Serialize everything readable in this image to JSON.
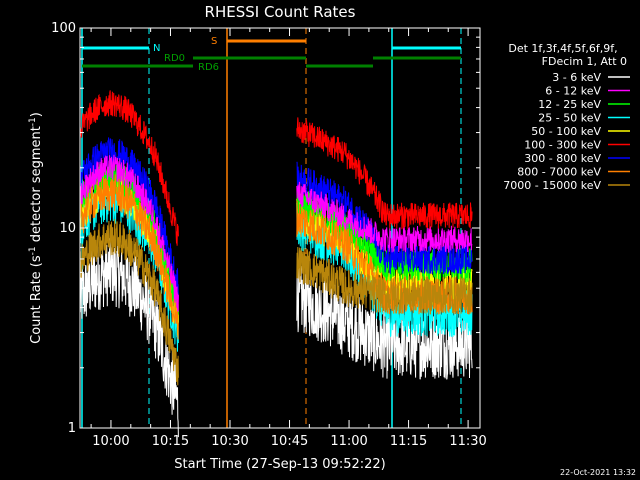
{
  "chart_data": {
    "type": "line",
    "title": "RHESSI Count Rates",
    "xlabel": "Start Time (27-Sep-13 09:52:22)",
    "ylabel_main": "Count Rate (s",
    "ylabel_sup1": "-1",
    "ylabel_mid": " detector segment",
    "ylabel_sup2": "-1",
    "ylabel_end": ")",
    "y_scale": "log",
    "ylim": [
      1,
      100
    ],
    "xlim_min": [
      0,
      49
    ],
    "x_ticks": [
      {
        "label": "10:00",
        "t": 10
      },
      {
        "label": "10:15",
        "t": 25
      },
      {
        "label": "10:30",
        "t": 40
      },
      {
        "label": "10:45",
        "t": 55
      },
      {
        "label": "11:00",
        "t": 70
      },
      {
        "label": "11:15",
        "t": 85
      },
      {
        "label": "11:30",
        "t": 100
      }
    ],
    "y_ticks": [
      {
        "label": "1",
        "v": 1
      },
      {
        "label": "10",
        "v": 10
      },
      {
        "label": "100",
        "v": 100
      }
    ],
    "legend": {
      "header1": "Det 1f,3f,4f,5f,6f,9f,",
      "header2": "FDecim 1, Att 0",
      "placement": "right"
    },
    "series": [
      {
        "name": "3 - 6 keV",
        "color": "#ffffff"
      },
      {
        "name": "6 - 12 keV",
        "color": "#ff00ff"
      },
      {
        "name": "12 - 25 keV",
        "color": "#00ff00"
      },
      {
        "name": "25 - 50 keV",
        "color": "#00ffff"
      },
      {
        "name": "50 - 100 keV",
        "color": "#ffff00"
      },
      {
        "name": "100 - 300 keV",
        "color": "#ff0000"
      },
      {
        "name": "300 - 800 keV",
        "color": "#0000ff"
      },
      {
        "name": "800 - 7000 keV",
        "color": "#ff7f00"
      },
      {
        "name": "7000 - 15000 keV",
        "color": "#b8860b"
      }
    ],
    "annotations": {
      "night_label": "N",
      "saa_label": "S",
      "rd0_label": "RD0",
      "rd6_label": "RD6"
    },
    "footer_date": "22-Oct-2021 13:32"
  }
}
